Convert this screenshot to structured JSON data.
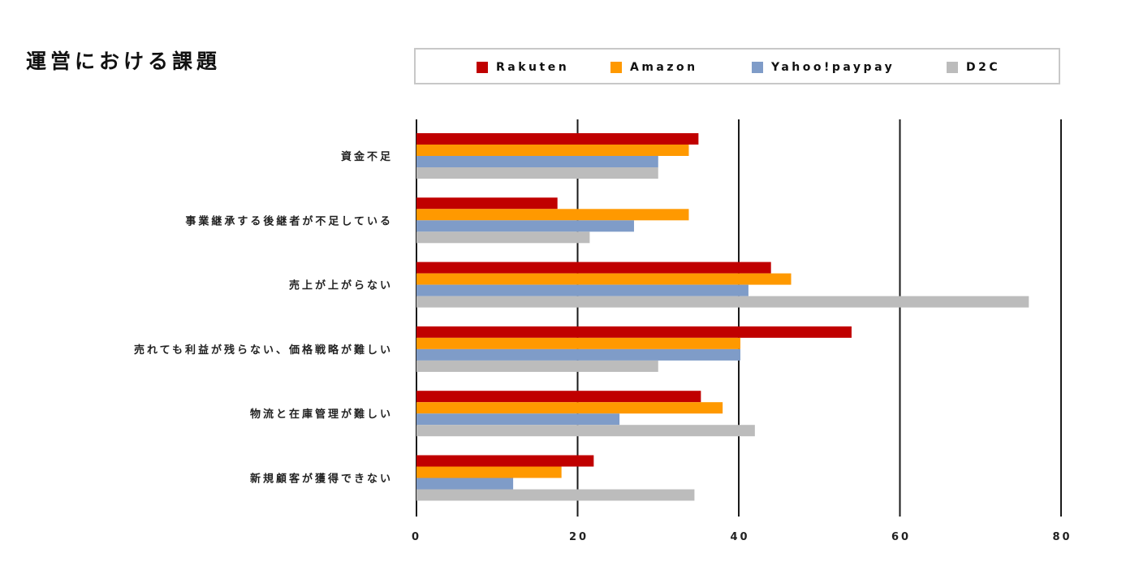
{
  "title": "運営における課題",
  "legend_items": [
    {
      "label": "Rakuten",
      "color": "#c00000"
    },
    {
      "label": "Amazon",
      "color": "#ff9900"
    },
    {
      "label": "Yahoo!paypay",
      "color": "#7f9cc8"
    },
    {
      "label": "D2C",
      "color": "#bcbcbc"
    }
  ],
  "chart_data": {
    "type": "bar",
    "orientation": "horizontal",
    "categories": [
      "資金不足",
      "事業継承する後継者が不足している",
      "売上が上がらない",
      "売れても利益が残らない、価格戦略が難しい",
      "物流と在庫管理が難しい",
      "新規顧客が獲得できない"
    ],
    "series": [
      {
        "name": "Rakuten",
        "color": "#c00000",
        "values": [
          35,
          17.5,
          44,
          54,
          35.3,
          22
        ]
      },
      {
        "name": "Amazon",
        "color": "#ff9900",
        "values": [
          33.8,
          33.8,
          46.5,
          40.2,
          38,
          18
        ]
      },
      {
        "name": "Yahoo!paypay",
        "color": "#7f9cc8",
        "values": [
          30,
          27,
          41.2,
          40.2,
          25.2,
          12
        ]
      },
      {
        "name": "D2C",
        "color": "#bcbcbc",
        "values": [
          30,
          21.5,
          76,
          30,
          42,
          34.5
        ]
      }
    ],
    "xlim": [
      0,
      80
    ],
    "xticks": [
      "0",
      "20",
      "40",
      "60",
      "80"
    ],
    "xlabel": "",
    "ylabel": "",
    "grid": true,
    "legend_position": "top"
  }
}
